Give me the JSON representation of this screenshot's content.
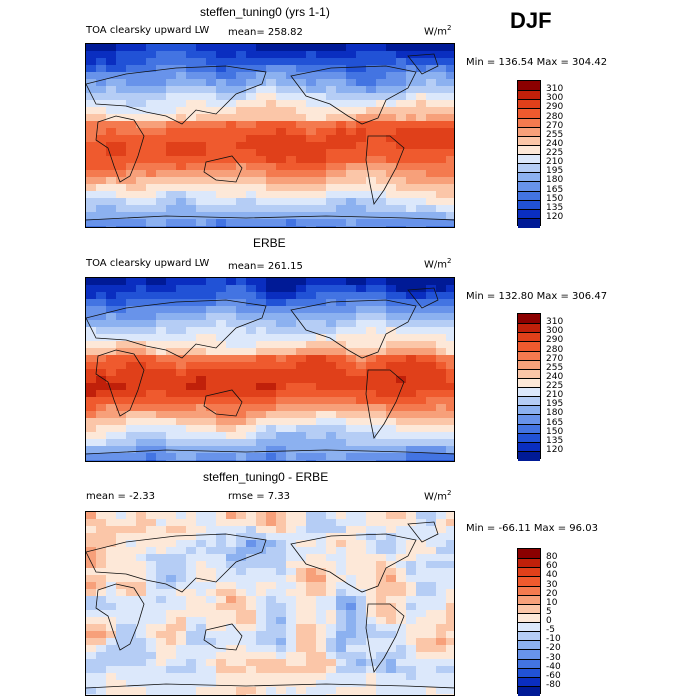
{
  "season": "DJF",
  "panels": [
    {
      "title": "steffen_tuning0 (yrs 1-1)",
      "subtitle": "TOA clearsky upward LW",
      "mean_label": "mean= 258.82",
      "units": "W/m",
      "units_sup": "2",
      "minmax": "Min = 136.54  Max = 304.42",
      "kind": "abs"
    },
    {
      "title": "ERBE",
      "subtitle": "TOA clearsky upward LW",
      "mean_label": "mean= 261.15",
      "units": "W/m",
      "units_sup": "2",
      "minmax": "Min = 132.80  Max = 306.47",
      "kind": "abs2"
    },
    {
      "title": "steffen_tuning0 - ERBE",
      "mean_label": "mean =   -2.33",
      "rmse_label": "rmse =    7.33",
      "units": "W/m",
      "units_sup": "2",
      "minmax": "Min = -66.11  Max =  96.03",
      "kind": "diff"
    }
  ],
  "colorbar_abs": {
    "levels": [
      "310",
      "300",
      "290",
      "280",
      "270",
      "255",
      "240",
      "225",
      "210",
      "195",
      "180",
      "165",
      "150",
      "135",
      "120"
    ],
    "colors": [
      "#8b0000",
      "#c0200a",
      "#e0401a",
      "#ef5a2e",
      "#f47a4f",
      "#f7a07a",
      "#fbc6a8",
      "#fde8d8",
      "#dce8fb",
      "#b5cdf5",
      "#8cb1f0",
      "#6893ea",
      "#4374e2",
      "#2152d6",
      "#0a2ec0",
      "#001a96"
    ]
  },
  "colorbar_diff": {
    "levels": [
      "80",
      "60",
      "40",
      "30",
      "20",
      "10",
      "5",
      "0",
      "-5",
      "-10",
      "-20",
      "-30",
      "-40",
      "-60",
      "-80"
    ],
    "colors": [
      "#8b0000",
      "#c0200a",
      "#e0401a",
      "#ef5a2e",
      "#f47a4f",
      "#f7a07a",
      "#fbc6a8",
      "#fde8d8",
      "#dce8fb",
      "#b5cdf5",
      "#8cb1f0",
      "#6893ea",
      "#4374e2",
      "#2152d6",
      "#0a2ec0",
      "#001a96"
    ]
  }
}
